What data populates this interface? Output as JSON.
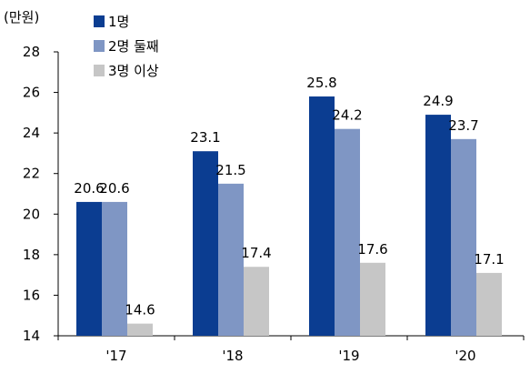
{
  "chart_data": {
    "type": "bar",
    "unit_label": "(만원)",
    "categories": [
      "'17",
      "'18",
      "'19",
      "'20"
    ],
    "series": [
      {
        "name": "1명",
        "color": "#0b3d91",
        "values": [
          20.6,
          23.1,
          25.8,
          24.9
        ]
      },
      {
        "name": "2명 둘째",
        "color": "#7f96c4",
        "values": [
          20.6,
          21.5,
          24.2,
          23.7
        ]
      },
      {
        "name": "3명 이상",
        "color": "#c6c6c6",
        "values": [
          14.6,
          17.4,
          17.6,
          17.1
        ]
      }
    ],
    "value_labels": [
      [
        "20.6",
        "23.1",
        "25.8",
        "24.9"
      ],
      [
        "20.6",
        "21.5",
        "24.2",
        "23.7"
      ],
      [
        "14.6",
        "17.4",
        "17.6",
        "17.1"
      ]
    ],
    "ylim": [
      14,
      28
    ],
    "yticks": [
      "14",
      "16",
      "18",
      "20",
      "22",
      "24",
      "26",
      "28"
    ],
    "legend_position": "top-left",
    "grid": false
  }
}
